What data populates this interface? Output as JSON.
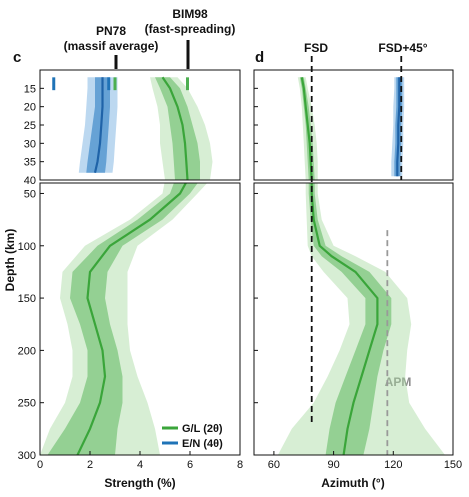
{
  "chart_data": [
    {
      "panel": "c",
      "type": "line",
      "xlabel": "Strength (%)",
      "ylabel": "Depth (km)",
      "xlim": [
        0,
        8
      ],
      "xticks": [
        "0",
        "2",
        "4",
        "6",
        "8"
      ],
      "ylim_upper": [
        10,
        40
      ],
      "yticks_upper": [
        "15",
        "20",
        "25",
        "30",
        "35",
        "40"
      ],
      "ylim_lower": [
        40,
        300
      ],
      "yticks_lower": [
        "50",
        "100",
        "150",
        "200",
        "250",
        "300"
      ],
      "annotations": [
        {
          "text": "PN78",
          "text2": "(massif average)",
          "x": 3.0
        },
        {
          "text": "BIM98",
          "text2": "(fast-spreading)",
          "x": 5.8
        }
      ],
      "markers": [
        {
          "x": 0.55,
          "color": "#1f73b7"
        },
        {
          "x": 2.75,
          "color": "#1f73b7"
        },
        {
          "x": 3.0,
          "color": "#4caf50"
        },
        {
          "x": 5.9,
          "color": "#4caf50"
        }
      ],
      "legend": [
        {
          "name": "G/L (2θ)",
          "color": "#3aa53a"
        },
        {
          "name": "E/N (4θ)",
          "color": "#1f73b7"
        }
      ],
      "series": [
        {
          "name": "G/L (2θ)",
          "depth": [
            12,
            15,
            20,
            25,
            30,
            35,
            40,
            50,
            75,
            100,
            125,
            150,
            175,
            200,
            225,
            250,
            275,
            300
          ],
          "values": [
            4.9,
            5.2,
            5.5,
            5.7,
            5.8,
            5.85,
            5.9,
            5.6,
            4.4,
            2.8,
            2.0,
            1.9,
            2.2,
            2.5,
            2.6,
            2.4,
            2.0,
            1.5
          ],
          "inner_lo": [
            4.6,
            4.8,
            5.1,
            5.2,
            5.3,
            5.35,
            5.4,
            5.2,
            3.9,
            2.3,
            1.3,
            1.2,
            1.6,
            1.9,
            1.9,
            1.6,
            1.0,
            0.3
          ],
          "inner_hi": [
            5.2,
            5.6,
            5.9,
            6.1,
            6.3,
            6.4,
            6.4,
            6.0,
            4.9,
            3.3,
            2.7,
            2.6,
            2.8,
            3.1,
            3.3,
            3.3,
            3.1,
            3.0
          ],
          "outer_lo": [
            4.4,
            4.5,
            4.7,
            4.8,
            4.8,
            4.9,
            5.0,
            4.9,
            3.6,
            1.8,
            0.9,
            0.8,
            1.1,
            1.3,
            1.3,
            1.0,
            0.4,
            0.0
          ],
          "outer_hi": [
            5.5,
            5.9,
            6.3,
            6.6,
            6.8,
            6.9,
            6.8,
            6.3,
            5.3,
            3.9,
            3.5,
            3.5,
            3.5,
            3.6,
            3.9,
            4.3,
            4.6,
            4.8
          ]
        },
        {
          "name": "E/N (4θ)",
          "depth": [
            12,
            15,
            20,
            25,
            30,
            35,
            38
          ],
          "values": [
            2.5,
            2.5,
            2.5,
            2.45,
            2.4,
            2.3,
            2.2
          ],
          "inner_lo": [
            2.2,
            2.2,
            2.2,
            2.1,
            2.0,
            1.9,
            1.85
          ],
          "inner_hi": [
            2.8,
            2.8,
            2.8,
            2.75,
            2.7,
            2.65,
            2.6
          ],
          "outer_lo": [
            1.9,
            1.9,
            1.85,
            1.8,
            1.7,
            1.6,
            1.55
          ],
          "outer_hi": [
            3.1,
            3.1,
            3.1,
            3.05,
            3.0,
            2.95,
            2.9
          ]
        }
      ]
    },
    {
      "panel": "d",
      "type": "line",
      "xlabel": "Azimuth (°)",
      "xlim": [
        50,
        150
      ],
      "xticks": [
        "60",
        "90",
        "120",
        "150"
      ],
      "ylim_upper": [
        10,
        40
      ],
      "ylim_lower": [
        40,
        300
      ],
      "annotations": [
        {
          "text": "FSD",
          "x": 79
        },
        {
          "text": "FSD+45°",
          "x": 124
        }
      ],
      "reference_lines": [
        {
          "name": "FSD",
          "x": 79,
          "depth": [
            10,
            270
          ],
          "color": "#111111"
        },
        {
          "name": "FSD+45°",
          "x": 124,
          "depth": [
            10,
            40
          ],
          "color": "#111111"
        },
        {
          "name": "APM",
          "x": 117,
          "depth": [
            85,
            300
          ],
          "color": "#999999",
          "label": "APM"
        }
      ],
      "series": [
        {
          "name": "G/L (2θ)",
          "depth": [
            12,
            15,
            20,
            25,
            30,
            35,
            40,
            50,
            75,
            100,
            110,
            125,
            150,
            175,
            200,
            225,
            250,
            275,
            300
          ],
          "values": [
            74,
            75,
            76,
            77,
            78,
            78.5,
            79,
            79,
            80,
            83,
            89,
            101,
            112,
            112,
            108,
            104,
            100,
            97,
            95
          ],
          "inner_lo": [
            73,
            74,
            75,
            76,
            76.5,
            77,
            77.5,
            77.5,
            78.5,
            80,
            84,
            94,
            106,
            106,
            101,
            96,
            91,
            88,
            86
          ],
          "inner_hi": [
            75,
            76,
            77.5,
            78.5,
            79.5,
            80,
            80.5,
            80.5,
            82,
            86,
            94,
            108,
            119,
            119,
            115,
            112,
            110,
            108,
            105
          ],
          "outer_lo": [
            72,
            73,
            74,
            74.5,
            75,
            75.5,
            76,
            76,
            76.5,
            77,
            79,
            85,
            97,
            98,
            93,
            87,
            80,
            69,
            62
          ],
          "outer_hi": [
            76,
            77,
            79,
            80.5,
            81.5,
            82,
            82,
            82,
            84,
            90,
            101,
            116,
            127,
            129,
            127,
            126,
            128,
            136,
            146
          ]
        },
        {
          "name": "E/N (4θ)",
          "depth": [
            12,
            15,
            20,
            25,
            30,
            35,
            39
          ],
          "values": [
            123,
            123,
            123,
            122.5,
            122.5,
            122,
            122
          ],
          "inner_lo": [
            121.5,
            121.5,
            121.5,
            121,
            121,
            120.5,
            120.5
          ],
          "inner_hi": [
            124.5,
            124.5,
            124.5,
            124,
            124,
            123.5,
            123.5
          ],
          "outer_lo": [
            120.5,
            120.5,
            120,
            120,
            119.5,
            119,
            119
          ],
          "outer_hi": [
            125.5,
            125.5,
            125.5,
            125,
            125,
            124.5,
            124.5
          ]
        }
      ]
    }
  ]
}
